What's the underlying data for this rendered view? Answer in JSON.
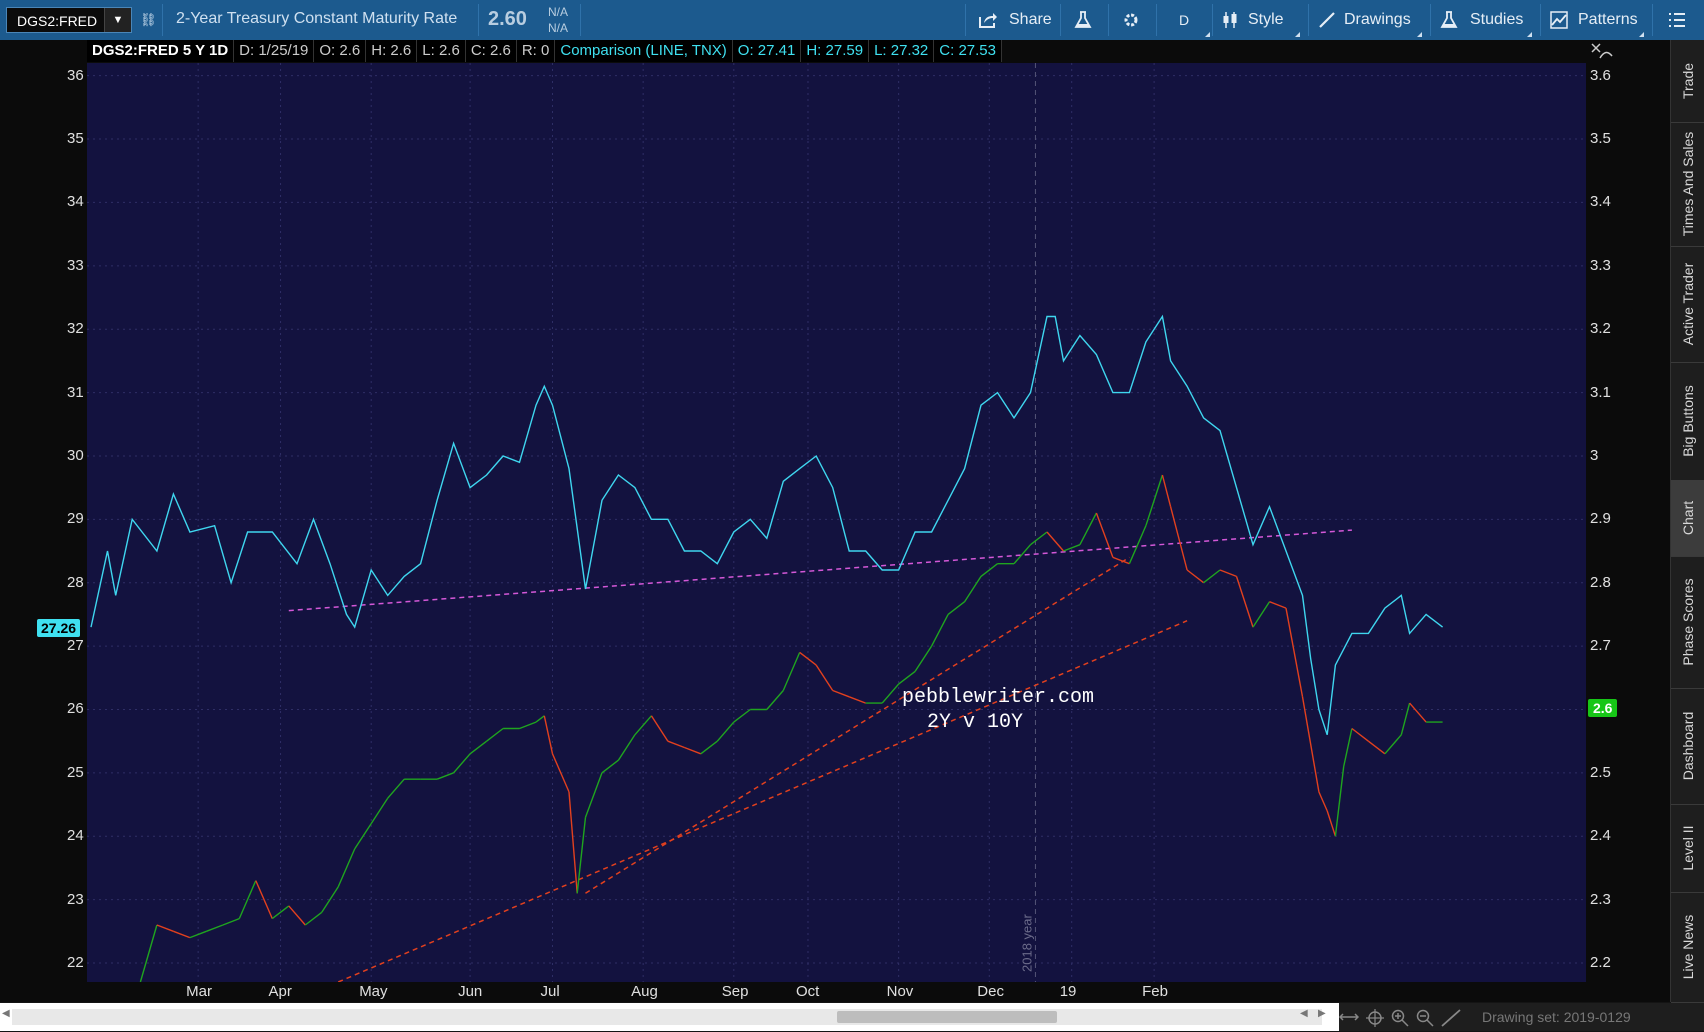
{
  "toolbar": {
    "symbol": "DGS2:FRED",
    "description": "2-Year Treasury Constant Maturity Rate",
    "price": "2.60",
    "change": "N/A",
    "change_pct": "N/A",
    "share_label": "Share",
    "aggregation": "D",
    "style_label": "Style",
    "drawings_label": "Drawings",
    "studies_label": "Studies",
    "patterns_label": "Patterns"
  },
  "infobar": {
    "title": "DGS2:FRED 5 Y 1D",
    "date": "D: 1/25/19",
    "open": "O: 2.6",
    "high": "H: 2.6",
    "low": "L: 2.6",
    "close": "C: 2.6",
    "r": "R: 0",
    "comparison": "Comparison (LINE, TNX)",
    "cmp_open": "O: 27.41",
    "cmp_high": "H: 27.59",
    "cmp_low": "L: 27.32",
    "cmp_close": "C: 27.53"
  },
  "price_tags": {
    "left": "27.26",
    "right": "2.6"
  },
  "annotation": {
    "line1": "pebblewriter.com",
    "line2": "2Y v 10Y"
  },
  "year_marker": "2018 year",
  "sidebar_tabs": [
    "Trade",
    "Times And Sales",
    "Active Trader",
    "Big Buttons",
    "Chart",
    "Phase Scores",
    "Dashboard",
    "Level II",
    "Live News"
  ],
  "active_tab": "Chart",
  "drawing_set": "Drawing set: 2019-0129",
  "colors": {
    "plot_bg": "#13123f",
    "comparison_line": "#3fd6ef",
    "price_up": "#1fa51f",
    "price_down": "#e2401e",
    "trendline_magenta": "#d458d8",
    "trendline_red": "#e2401e",
    "toolbar_bg": "#1c5a8e"
  },
  "chart_data": {
    "type": "line",
    "x_tick_labels": [
      "Mar",
      "Apr",
      "May",
      "Jun",
      "Jul",
      "Aug",
      "Sep",
      "Oct",
      "Nov",
      "Dec",
      "19",
      "Feb"
    ],
    "left_axis": {
      "ticks": [
        22,
        23,
        24,
        25,
        26,
        27,
        28,
        29,
        30,
        31,
        32,
        33,
        34,
        35,
        36
      ],
      "ylim": [
        21.7,
        36.2
      ]
    },
    "right_axis": {
      "ticks": [
        "2.2",
        "2.3",
        "2.4",
        "2.5",
        "2.6",
        "2.7",
        "2.8",
        "2.9",
        "3",
        "3.1",
        "3.2",
        "3.3",
        "3.4",
        "3.5",
        "3.6"
      ],
      "ylim": [
        2.17,
        3.62
      ]
    },
    "series": [
      {
        "name": "TNX",
        "axis": "left",
        "points": [
          [
            0,
            27.3
          ],
          [
            2,
            28.5
          ],
          [
            3,
            27.8
          ],
          [
            5,
            29.0
          ],
          [
            8,
            28.5
          ],
          [
            10,
            29.4
          ],
          [
            12,
            28.8
          ],
          [
            15,
            28.9
          ],
          [
            17,
            28.0
          ],
          [
            19,
            28.8
          ],
          [
            22,
            28.8
          ],
          [
            25,
            28.3
          ],
          [
            27,
            29.0
          ],
          [
            29,
            28.3
          ],
          [
            31,
            27.5
          ],
          [
            32,
            27.3
          ],
          [
            34,
            28.2
          ],
          [
            36,
            27.8
          ],
          [
            38,
            28.1
          ],
          [
            40,
            28.3
          ],
          [
            42,
            29.3
          ],
          [
            44,
            30.2
          ],
          [
            46,
            29.5
          ],
          [
            48,
            29.7
          ],
          [
            50,
            30.0
          ],
          [
            52,
            29.9
          ],
          [
            54,
            30.8
          ],
          [
            55,
            31.1
          ],
          [
            56,
            30.8
          ],
          [
            58,
            29.8
          ],
          [
            60,
            27.9
          ],
          [
            62,
            29.3
          ],
          [
            64,
            29.7
          ],
          [
            66,
            29.5
          ],
          [
            68,
            29.0
          ],
          [
            70,
            29.0
          ],
          [
            72,
            28.5
          ],
          [
            74,
            28.5
          ],
          [
            76,
            28.3
          ],
          [
            78,
            28.8
          ],
          [
            80,
            29.0
          ],
          [
            82,
            28.7
          ],
          [
            84,
            29.6
          ],
          [
            86,
            29.8
          ],
          [
            88,
            30.0
          ],
          [
            90,
            29.5
          ],
          [
            92,
            28.5
          ],
          [
            94,
            28.5
          ],
          [
            96,
            28.2
          ],
          [
            98,
            28.2
          ],
          [
            100,
            28.8
          ],
          [
            102,
            28.8
          ],
          [
            104,
            29.3
          ],
          [
            106,
            29.8
          ],
          [
            108,
            30.8
          ],
          [
            110,
            31.0
          ],
          [
            112,
            30.6
          ],
          [
            114,
            31.0
          ],
          [
            116,
            32.2
          ],
          [
            117,
            32.2
          ],
          [
            118,
            31.5
          ],
          [
            120,
            31.9
          ],
          [
            122,
            31.6
          ],
          [
            124,
            31.0
          ],
          [
            126,
            31.0
          ],
          [
            128,
            31.8
          ],
          [
            130,
            32.2
          ],
          [
            131,
            31.5
          ],
          [
            133,
            31.1
          ],
          [
            135,
            30.6
          ],
          [
            137,
            30.4
          ],
          [
            139,
            29.5
          ],
          [
            141,
            28.6
          ],
          [
            143,
            29.2
          ],
          [
            145,
            28.5
          ],
          [
            147,
            27.8
          ],
          [
            148,
            26.8
          ],
          [
            149,
            26.0
          ],
          [
            150,
            25.6
          ],
          [
            151,
            26.7
          ],
          [
            153,
            27.2
          ],
          [
            155,
            27.2
          ],
          [
            157,
            27.6
          ],
          [
            159,
            27.8
          ],
          [
            160,
            27.2
          ],
          [
            162,
            27.5
          ],
          [
            164,
            27.3
          ]
        ]
      },
      {
        "name": "DGS2",
        "axis": "right",
        "points": [
          [
            6,
            2.17
          ],
          [
            8,
            2.26
          ],
          [
            10,
            2.25
          ],
          [
            12,
            2.24
          ],
          [
            14,
            2.25
          ],
          [
            16,
            2.26
          ],
          [
            18,
            2.27
          ],
          [
            20,
            2.33
          ],
          [
            22,
            2.27
          ],
          [
            24,
            2.29
          ],
          [
            26,
            2.26
          ],
          [
            28,
            2.28
          ],
          [
            30,
            2.32
          ],
          [
            32,
            2.38
          ],
          [
            34,
            2.42
          ],
          [
            36,
            2.46
          ],
          [
            38,
            2.49
          ],
          [
            40,
            2.49
          ],
          [
            42,
            2.49
          ],
          [
            44,
            2.5
          ],
          [
            46,
            2.53
          ],
          [
            48,
            2.55
          ],
          [
            50,
            2.57
          ],
          [
            52,
            2.57
          ],
          [
            54,
            2.58
          ],
          [
            55,
            2.59
          ],
          [
            56,
            2.53
          ],
          [
            58,
            2.47
          ],
          [
            59,
            2.31
          ],
          [
            60,
            2.43
          ],
          [
            62,
            2.5
          ],
          [
            64,
            2.52
          ],
          [
            66,
            2.56
          ],
          [
            68,
            2.59
          ],
          [
            70,
            2.55
          ],
          [
            72,
            2.54
          ],
          [
            74,
            2.53
          ],
          [
            76,
            2.55
          ],
          [
            78,
            2.58
          ],
          [
            80,
            2.6
          ],
          [
            82,
            2.6
          ],
          [
            84,
            2.63
          ],
          [
            86,
            2.69
          ],
          [
            88,
            2.67
          ],
          [
            90,
            2.63
          ],
          [
            92,
            2.62
          ],
          [
            94,
            2.61
          ],
          [
            96,
            2.61
          ],
          [
            98,
            2.64
          ],
          [
            100,
            2.66
          ],
          [
            102,
            2.7
          ],
          [
            104,
            2.75
          ],
          [
            106,
            2.77
          ],
          [
            108,
            2.81
          ],
          [
            110,
            2.83
          ],
          [
            112,
            2.83
          ],
          [
            114,
            2.86
          ],
          [
            116,
            2.88
          ],
          [
            118,
            2.85
          ],
          [
            120,
            2.86
          ],
          [
            122,
            2.91
          ],
          [
            124,
            2.84
          ],
          [
            126,
            2.83
          ],
          [
            128,
            2.89
          ],
          [
            130,
            2.97
          ],
          [
            131,
            2.92
          ],
          [
            133,
            2.82
          ],
          [
            135,
            2.8
          ],
          [
            137,
            2.82
          ],
          [
            139,
            2.81
          ],
          [
            141,
            2.73
          ],
          [
            143,
            2.77
          ],
          [
            145,
            2.76
          ],
          [
            147,
            2.62
          ],
          [
            149,
            2.47
          ],
          [
            150,
            2.44
          ],
          [
            151,
            2.4
          ],
          [
            152,
            2.51
          ],
          [
            153,
            2.57
          ],
          [
            155,
            2.55
          ],
          [
            157,
            2.53
          ],
          [
            159,
            2.56
          ],
          [
            160,
            2.61
          ],
          [
            162,
            2.58
          ],
          [
            164,
            2.58
          ]
        ]
      }
    ],
    "trendlines": [
      {
        "style": "dashed",
        "color": "magenta",
        "from": [
          24,
          2.756
        ],
        "to": [
          153,
          2.883
        ]
      },
      {
        "style": "dashed",
        "color": "red",
        "from": [
          30,
          2.17
        ],
        "to": [
          133,
          2.74
        ]
      },
      {
        "style": "dashed",
        "color": "red",
        "from": [
          60,
          2.31
        ],
        "to": [
          126,
          2.84
        ]
      }
    ]
  }
}
